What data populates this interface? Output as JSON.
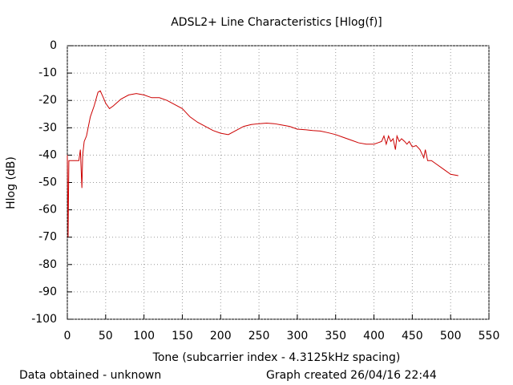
{
  "chart_data": {
    "type": "line",
    "title": "ADSL2+ Line Characteristics [Hlog(f)]",
    "x_label": "Tone (subcarrier index - 4.3125kHz spacing)",
    "y_label": "Hlog (dB)",
    "footer_left": "Data obtained - unknown",
    "footer_right": "Graph created 26/04/16 22:44",
    "x": [
      0,
      1,
      2,
      5,
      10,
      15,
      17,
      19,
      20,
      22,
      25,
      30,
      35,
      40,
      43,
      47,
      50,
      55,
      60,
      70,
      80,
      90,
      100,
      110,
      120,
      130,
      140,
      150,
      160,
      170,
      180,
      190,
      200,
      210,
      220,
      230,
      240,
      250,
      260,
      270,
      280,
      290,
      300,
      310,
      320,
      330,
      340,
      350,
      360,
      370,
      380,
      390,
      400,
      405,
      410,
      413,
      416,
      419,
      422,
      425,
      428,
      430,
      433,
      436,
      440,
      443,
      446,
      450,
      455,
      460,
      465,
      467,
      470,
      475,
      480,
      490,
      500,
      510
    ],
    "series": [
      {
        "color": "#cc0000",
        "values": [
          -40,
          -70,
          -42,
          -42,
          -42,
          -42,
          -38,
          -52,
          -40,
          -35,
          -33,
          -26,
          -22,
          -17,
          -16.5,
          -19,
          -21,
          -23,
          -22,
          -19.5,
          -18,
          -17.5,
          -18,
          -19,
          -19,
          -20,
          -21.5,
          -23,
          -26,
          -28,
          -29.5,
          -31,
          -32,
          -32.5,
          -31,
          -29.5,
          -28.8,
          -28.5,
          -28.3,
          -28.5,
          -29,
          -29.5,
          -30.5,
          -30.7,
          -31,
          -31.2,
          -31.8,
          -32.5,
          -33.5,
          -34.5,
          -35.5,
          -36,
          -36,
          -35.5,
          -35,
          -33,
          -36,
          -33,
          -35,
          -34,
          -38,
          -33,
          -35,
          -34,
          -35,
          -36,
          -35,
          -37,
          -36.5,
          -38,
          -41,
          -38,
          -42,
          -42,
          -43,
          -45,
          -47,
          -47.5
        ]
      }
    ],
    "xlim": [
      0,
      550
    ],
    "xticks": [
      0,
      50,
      100,
      150,
      200,
      250,
      300,
      350,
      400,
      450,
      500,
      550
    ],
    "ylim": [
      -100,
      0
    ],
    "yticks": [
      0,
      -10,
      -20,
      -30,
      -40,
      -50,
      -60,
      -70,
      -80,
      -90,
      -100
    ],
    "grid": true
  }
}
